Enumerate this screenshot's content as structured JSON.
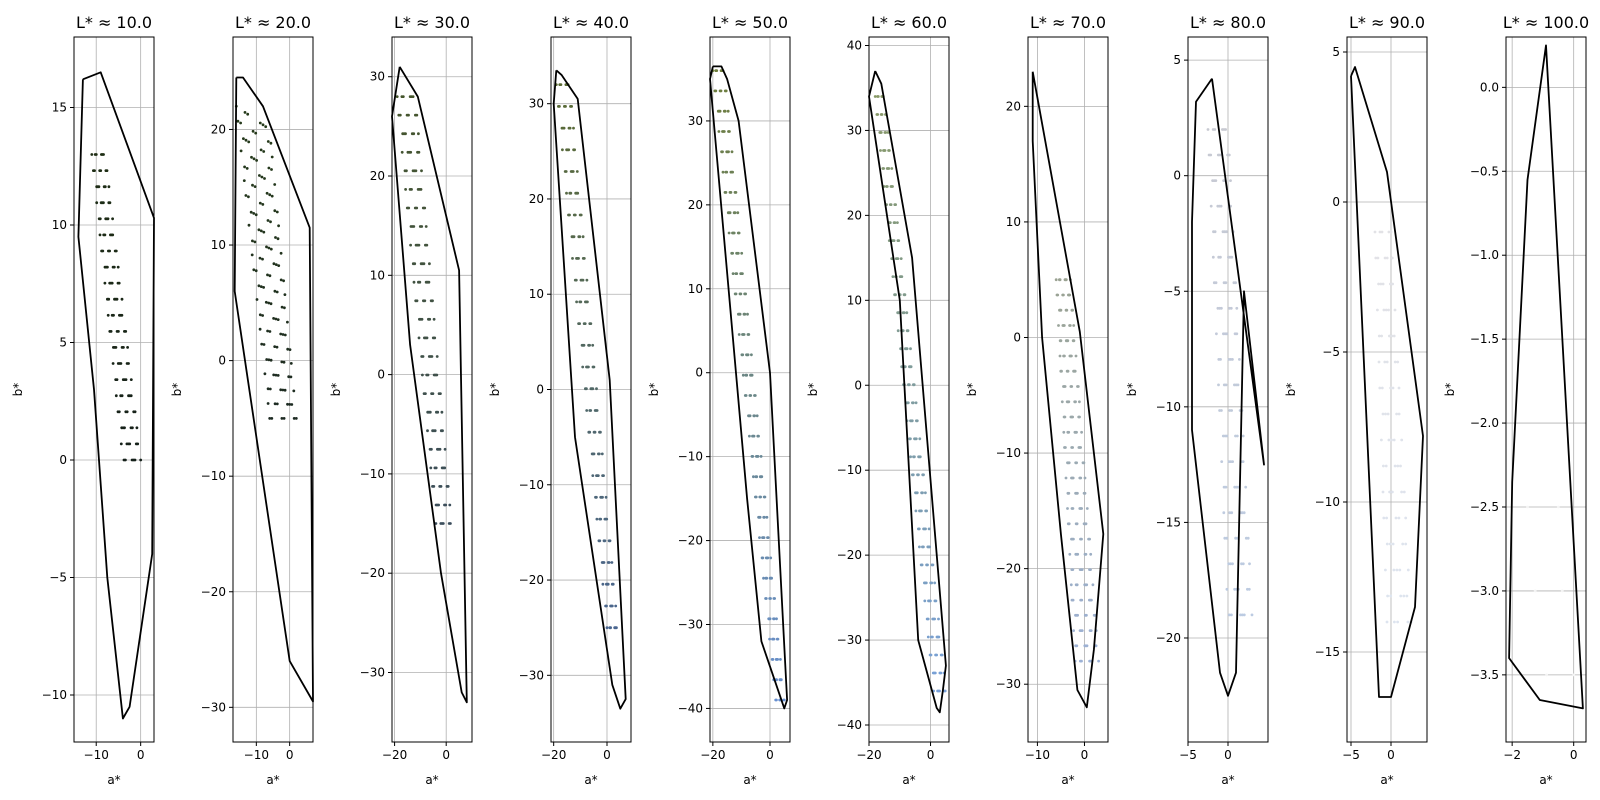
{
  "chart_data": [
    {
      "type": "scatter",
      "title": "L* ≈ 10.0",
      "xlabel": "a*",
      "ylabel": "b*",
      "xlim": [
        -15,
        3
      ],
      "ylim": [
        -12,
        18
      ],
      "grid": true,
      "xticks": [
        -10,
        0
      ],
      "yticks": [
        -10,
        -5,
        0,
        5,
        10,
        15
      ],
      "hull": [
        [
          -13,
          16.2
        ],
        [
          -9,
          16.5
        ],
        [
          3,
          10.3
        ],
        [
          2.6,
          -4
        ],
        [
          -2.5,
          -10.5
        ],
        [
          -4,
          -11
        ],
        [
          -7.5,
          -5
        ],
        [
          -10.5,
          3
        ],
        [
          -14,
          9.5
        ],
        [
          -13,
          16.2
        ]
      ],
      "cloud": {
        "tl": [
          -11,
          13
        ],
        "tr": [
          -8,
          13
        ],
        "br": [
          0,
          0
        ],
        "bl": [
          -4,
          0
        ],
        "color_top": "#1f2e15",
        "color_bottom": "#15201a",
        "rows": 20,
        "cols": 6
      }
    },
    {
      "type": "scatter",
      "title": "L* ≈ 20.0",
      "xlabel": "a*",
      "ylabel": "b*",
      "xlim": [
        -17,
        7
      ],
      "ylim": [
        -33,
        28
      ],
      "grid": true,
      "xticks": [
        -10,
        0
      ],
      "yticks": [
        -30,
        -20,
        -10,
        0,
        10,
        20
      ],
      "hull": [
        [
          -16,
          24.5
        ],
        [
          -14,
          24.5
        ],
        [
          -8,
          22
        ],
        [
          6,
          11.5
        ],
        [
          7,
          -29.5
        ],
        [
          0,
          -26
        ],
        [
          -16.5,
          6
        ],
        [
          -16,
          24.5
        ]
      ],
      "cloud": {
        "tl": [
          -16,
          22
        ],
        "tr": [
          -6,
          20
        ],
        "br": [
          2,
          -5
        ],
        "bl": [
          -6,
          -5
        ],
        "color_top": "#253a1a",
        "color_bottom": "#1d2a22",
        "rows": 22,
        "cols": 6
      }
    },
    {
      "type": "scatter",
      "title": "L* ≈ 30.0",
      "xlabel": "a*",
      "ylabel": "b*",
      "xlim": [
        -21,
        10
      ],
      "ylim": [
        -37,
        34
      ],
      "grid": true,
      "xticks": [
        -20,
        0
      ],
      "yticks": [
        -30,
        -20,
        -10,
        0,
        10,
        20,
        30
      ],
      "hull": [
        [
          -18,
          31
        ],
        [
          -11,
          28
        ],
        [
          5,
          10.5
        ],
        [
          8,
          -33
        ],
        [
          6,
          -32
        ],
        [
          -2,
          -20
        ],
        [
          -14,
          3
        ],
        [
          -21,
          26
        ],
        [
          -18,
          31
        ]
      ],
      "cloud": {
        "tl": [
          -19,
          28
        ],
        "tr": [
          -12,
          28
        ],
        "br": [
          2,
          -15
        ],
        "bl": [
          -4,
          -15
        ],
        "color_top": "#45552c",
        "color_bottom": "#3c4e5c",
        "rows": 24,
        "cols": 6
      }
    },
    {
      "type": "scatter",
      "title": "L* ≈ 40.0",
      "xlabel": "a*",
      "ylabel": "b*",
      "xlim": [
        -21,
        9
      ],
      "ylim": [
        -37,
        37
      ],
      "grid": true,
      "xticks": [
        -20,
        0
      ],
      "yticks": [
        -30,
        -20,
        -10,
        0,
        10,
        20,
        30
      ],
      "hull": [
        [
          -19,
          33.5
        ],
        [
          -17,
          33
        ],
        [
          -11,
          30.5
        ],
        [
          1,
          1
        ],
        [
          7,
          -32.5
        ],
        [
          5,
          -33.5
        ],
        [
          2,
          -31
        ],
        [
          -12,
          -5
        ],
        [
          -20,
          30
        ],
        [
          -19,
          33.5
        ]
      ],
      "cloud": {
        "tl": [
          -19,
          32
        ],
        "tr": [
          -14,
          32
        ],
        "br": [
          4,
          -25
        ],
        "bl": [
          0,
          -25
        ],
        "color_top": "#5a6a33",
        "color_bottom": "#4a6690",
        "rows": 26,
        "cols": 6
      }
    },
    {
      "type": "scatter",
      "title": "L* ≈ 50.0",
      "xlabel": "a*",
      "ylabel": "b*",
      "xlim": [
        -21,
        7
      ],
      "ylim": [
        -44,
        40
      ],
      "grid": true,
      "xticks": [
        -20,
        0
      ],
      "yticks": [
        -40,
        -30,
        -20,
        -10,
        0,
        10,
        20,
        30
      ],
      "hull": [
        [
          -20,
          36.5
        ],
        [
          -17,
          36.5
        ],
        [
          -15,
          35
        ],
        [
          -11,
          30
        ],
        [
          0,
          0
        ],
        [
          6,
          -39
        ],
        [
          5,
          -40
        ],
        [
          -3,
          -32
        ],
        [
          -8,
          -15
        ],
        [
          -21,
          35
        ],
        [
          -20,
          36.5
        ]
      ],
      "cloud": {
        "tl": [
          -20,
          36
        ],
        "tr": [
          -16,
          36
        ],
        "br": [
          5,
          -39
        ],
        "bl": [
          2,
          -39
        ],
        "color_top": "#6e7d3c",
        "color_bottom": "#6890d0",
        "rows": 32,
        "cols": 6
      }
    },
    {
      "type": "scatter",
      "title": "L* ≈ 60.0",
      "xlabel": "a*",
      "ylabel": "b*",
      "xlim": [
        -20,
        6
      ],
      "ylim": [
        -42,
        41
      ],
      "grid": true,
      "xticks": [
        -20,
        0
      ],
      "yticks": [
        -40,
        -30,
        -20,
        -10,
        0,
        10,
        20,
        30,
        40
      ],
      "hull": [
        [
          -18,
          37
        ],
        [
          -16,
          35.5
        ],
        [
          -6,
          15
        ],
        [
          5,
          -33
        ],
        [
          4,
          -36
        ],
        [
          3,
          -38.5
        ],
        [
          2,
          -38
        ],
        [
          -4,
          -30
        ],
        [
          -10,
          10
        ],
        [
          -20,
          34
        ],
        [
          -18,
          37
        ]
      ],
      "cloud": {
        "tl": [
          -18,
          34
        ],
        "tr": [
          -15,
          34
        ],
        "br": [
          5,
          -36
        ],
        "bl": [
          1,
          -36
        ],
        "color_top": "#879866",
        "color_bottom": "#78a0d8",
        "rows": 34,
        "cols": 6
      }
    },
    {
      "type": "scatter",
      "title": "L* ≈ 70.0",
      "xlabel": "a*",
      "ylabel": "b*",
      "xlim": [
        -12,
        5
      ],
      "ylim": [
        -35,
        26
      ],
      "grid": true,
      "xticks": [
        -10,
        0
      ],
      "yticks": [
        -30,
        -20,
        -10,
        0,
        10,
        20
      ],
      "hull": [
        [
          -11,
          23
        ],
        [
          -1,
          0.5
        ],
        [
          4,
          -17
        ],
        [
          2,
          -27
        ],
        [
          0.5,
          -32
        ],
        [
          -1.5,
          -30.5
        ],
        [
          -5,
          -17
        ],
        [
          -9,
          0
        ],
        [
          -11,
          17
        ],
        [
          -11,
          23
        ]
      ],
      "cloud": {
        "tl": [
          -6,
          5
        ],
        "tr": [
          -3,
          5
        ],
        "br": [
          3,
          -28
        ],
        "bl": [
          -2,
          -28
        ],
        "color_top": "#9aa292",
        "color_bottom": "#9db2d6",
        "rows": 26,
        "cols": 7
      }
    },
    {
      "type": "scatter",
      "title": "L* ≈ 80.0",
      "xlabel": "a*",
      "ylabel": "b*",
      "xlim": [
        -5,
        5
      ],
      "ylim": [
        -24.5,
        6
      ],
      "grid": true,
      "xticks": [
        -5,
        0
      ],
      "yticks": [
        -20,
        -15,
        -10,
        -5,
        0,
        5
      ],
      "hull": [
        [
          -2,
          4.2
        ],
        [
          -4,
          3.2
        ],
        [
          -4.5,
          -2
        ],
        [
          -4.5,
          -11
        ],
        [
          -1,
          -21.5
        ],
        [
          0,
          -22.5
        ],
        [
          1,
          -21.5
        ],
        [
          2,
          -5
        ],
        [
          4.5,
          -12.5
        ],
        [
          -2,
          4.2
        ]
      ],
      "cloud": {
        "tl": [
          -2.5,
          2
        ],
        "tr": [
          0,
          2
        ],
        "br": [
          3,
          -19
        ],
        "bl": [
          0,
          -19
        ],
        "color_top": "#c8cad2",
        "color_bottom": "#bccbe2",
        "rows": 20,
        "cols": 6
      }
    },
    {
      "type": "scatter",
      "title": "L* ≈ 90.0",
      "xlabel": "a*",
      "ylabel": "b*",
      "xlim": [
        -5.5,
        4.5
      ],
      "ylim": [
        -18,
        5.5
      ],
      "grid": true,
      "xticks": [
        -5,
        0
      ],
      "yticks": [
        -15,
        -10,
        -5,
        0,
        5
      ],
      "hull": [
        [
          -5,
          4.2
        ],
        [
          -4.5,
          4.5
        ],
        [
          -0.5,
          1
        ],
        [
          4,
          -7.8
        ],
        [
          3,
          -13.5
        ],
        [
          0,
          -16.5
        ],
        [
          -1.5,
          -16.5
        ],
        [
          -5,
          4.2
        ]
      ],
      "cloud": {
        "tl": [
          -2,
          -1
        ],
        "tr": [
          0,
          -1
        ],
        "br": [
          2.5,
          -14
        ],
        "bl": [
          -0.5,
          -14
        ],
        "color_top": "#e2e2e6",
        "color_bottom": "#dde4ef",
        "rows": 16,
        "cols": 5
      }
    },
    {
      "type": "scatter",
      "title": "L* ≈ 100.0",
      "xlabel": "a*",
      "ylabel": "b*",
      "xlim": [
        -2.2,
        0.4
      ],
      "ylim": [
        -3.9,
        0.3
      ],
      "grid": true,
      "xticks": [
        -2,
        0
      ],
      "yticks": [
        -3.5,
        -3.0,
        -2.5,
        -2.0,
        -1.5,
        -1.0,
        -0.5,
        0.0
      ],
      "hull": [
        [
          -2,
          -2.35
        ],
        [
          -1.5,
          -0.55
        ],
        [
          -0.9,
          0.25
        ],
        [
          0.3,
          -3.7
        ],
        [
          -1.1,
          -3.65
        ],
        [
          -2.1,
          -3.4
        ],
        [
          -2,
          -2.35
        ]
      ],
      "cloud": {
        "tl": [
          -1.5,
          -2.5
        ],
        "tr": [
          -0.5,
          -2.5
        ],
        "br": [
          0,
          -3.5
        ],
        "bl": [
          -1,
          -3.5
        ],
        "color_top": "#f4f4f4",
        "color_bottom": "#f4f4f4",
        "rows": 3,
        "cols": 2
      }
    }
  ]
}
